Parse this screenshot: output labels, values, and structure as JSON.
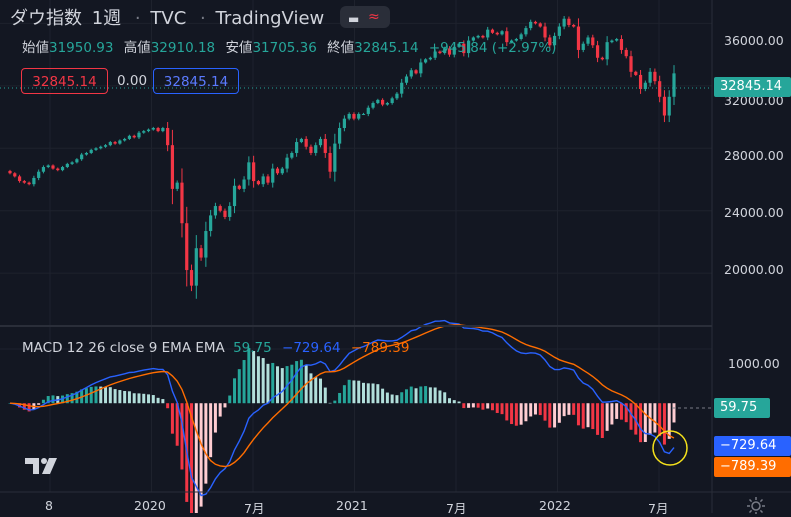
{
  "header": {
    "symbol": "ダウ指数",
    "interval": "1週",
    "exchange": "TVC",
    "source": "TradingView"
  },
  "ohlc": {
    "open_label": "始値",
    "open": "31950.93",
    "high_label": "高値",
    "high": "32910.18",
    "low_label": "安値",
    "low": "31705.36",
    "close_label": "終値",
    "close": "32845.14",
    "change": "+945.84 (+2.97%)"
  },
  "price_boxes": {
    "left": "32845.14",
    "middle": "0.00",
    "right": "32845.14"
  },
  "macd_legend": {
    "name": "MACD 12 26 close 9 EMA EMA",
    "hist": "59.75",
    "macd": "−729.64",
    "signal": "−789.39"
  },
  "price_axis": [
    "36000.00",
    "32000.00",
    "28000.00",
    "24000.00",
    "20000.00"
  ],
  "macd_axis": [
    "1000.00"
  ],
  "time_axis": [
    "8",
    "2020",
    "7月",
    "2021",
    "7月",
    "2022",
    "7月"
  ],
  "tags": {
    "price": "32845.14",
    "hist": "59.75",
    "macd": "−729.64",
    "signal": "−789.39"
  },
  "colors": {
    "up": "#26a69a",
    "down": "#f23645",
    "macd_line": "#2962ff",
    "signal_line": "#ff6d00",
    "hist_up": "#b2dfdb",
    "hist_down": "#ffcdd2",
    "highlight_circle": "#f5e11b"
  },
  "chart_data": [
    {
      "type": "candlestick",
      "title": "ダウ指数 · 1週 · TVC",
      "ylim": [
        17000,
        37500
      ],
      "y_ticks": [
        20000,
        24000,
        28000,
        32000,
        36000
      ],
      "x_ticks": [
        "8",
        "2020",
        "7月",
        "2021",
        "7月",
        "2022",
        "7月"
      ],
      "last_close": 32845.14,
      "weekly_close_series": [
        26400,
        26200,
        25900,
        25800,
        25700,
        26100,
        26500,
        26800,
        26900,
        26700,
        26600,
        26800,
        27000,
        27100,
        27300,
        27600,
        27700,
        27900,
        28000,
        28100,
        28200,
        28400,
        28300,
        28500,
        28600,
        28800,
        28700,
        29000,
        29100,
        29200,
        29300,
        29100,
        29300,
        28200,
        25400,
        25800,
        23200,
        20200,
        19200,
        21600,
        21000,
        22700,
        23700,
        24300,
        24000,
        23600,
        24300,
        25600,
        25400,
        26000,
        27100,
        25900,
        25700,
        26200,
        25800,
        26700,
        26400,
        26700,
        27400,
        27700,
        28400,
        28600,
        28100,
        27700,
        28200,
        28600,
        27700,
        26500,
        28300,
        29300,
        29900,
        30200,
        29900,
        30200,
        30200,
        30600,
        30900,
        31100,
        30800,
        30900,
        31200,
        31500,
        32200,
        32600,
        33000,
        32800,
        33500,
        33700,
        33800,
        34200,
        34100,
        34400,
        34000,
        34500,
        34700,
        34100,
        34900,
        35100,
        35200,
        35100,
        35600,
        35400,
        35300,
        35500,
        34800,
        34900,
        35000,
        35300,
        35700,
        36100,
        36000,
        35800,
        35100,
        34600,
        35200,
        35800,
        36300,
        35900,
        35800,
        34300,
        34700,
        35100,
        34600,
        33800,
        33700,
        34800,
        34900,
        35000,
        34300,
        33900,
        32900,
        32700,
        31800,
        32200,
        32900,
        32300,
        31300,
        30100,
        31300,
        32800
      ]
    },
    {
      "type": "macd",
      "parameters": "12 26 close 9 EMA EMA",
      "ylim": [
        -1600,
        1350
      ],
      "y_ticks": [
        1000
      ],
      "last_values": {
        "histogram": 59.75,
        "macd": -729.64,
        "signal": -789.39
      }
    }
  ]
}
